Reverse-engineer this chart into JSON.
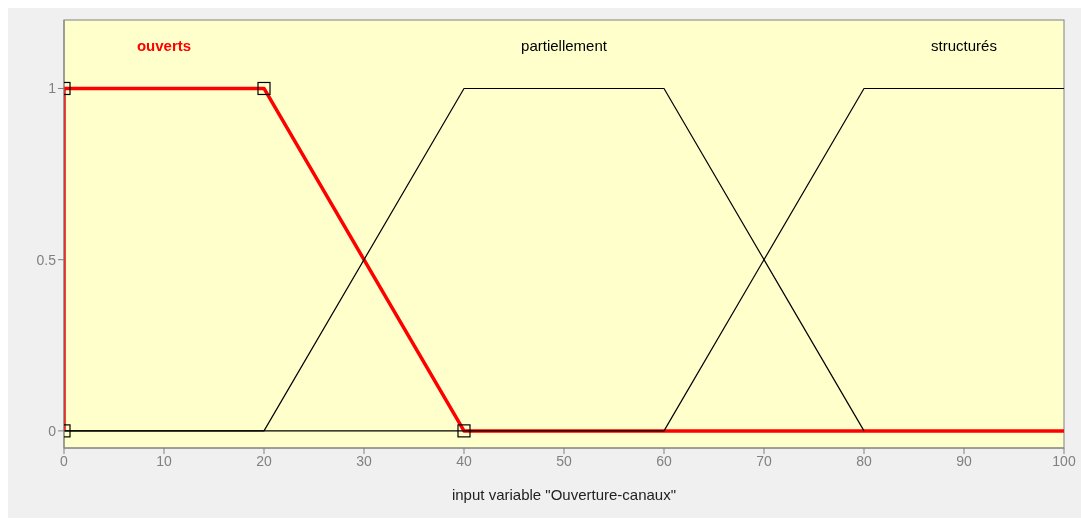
{
  "chart_data": {
    "type": "line",
    "xlabel": "input variable \"Ouverture-canaux\"",
    "xlim": [
      0,
      100
    ],
    "xticks": [
      0,
      10,
      20,
      30,
      40,
      50,
      60,
      70,
      80,
      90,
      100
    ],
    "ylim": [
      -0.05,
      1.2
    ],
    "yticks": [
      0,
      0.5,
      1
    ],
    "grid": false,
    "series": [
      {
        "name": "ouverts",
        "color": "#ff0000",
        "marker": "square",
        "x": [
          0,
          0,
          20,
          40,
          100
        ],
        "values": [
          0,
          1,
          1,
          0,
          0
        ]
      },
      {
        "name": "partiellement",
        "color": "#000000",
        "marker": "none",
        "x": [
          0,
          20,
          40,
          60,
          80
        ],
        "values": [
          0,
          0,
          1,
          1,
          0
        ]
      },
      {
        "name": "structurés",
        "color": "#000000",
        "marker": "none",
        "x": [
          0,
          60,
          80,
          100
        ],
        "values": [
          0,
          0,
          1,
          1
        ]
      }
    ]
  }
}
